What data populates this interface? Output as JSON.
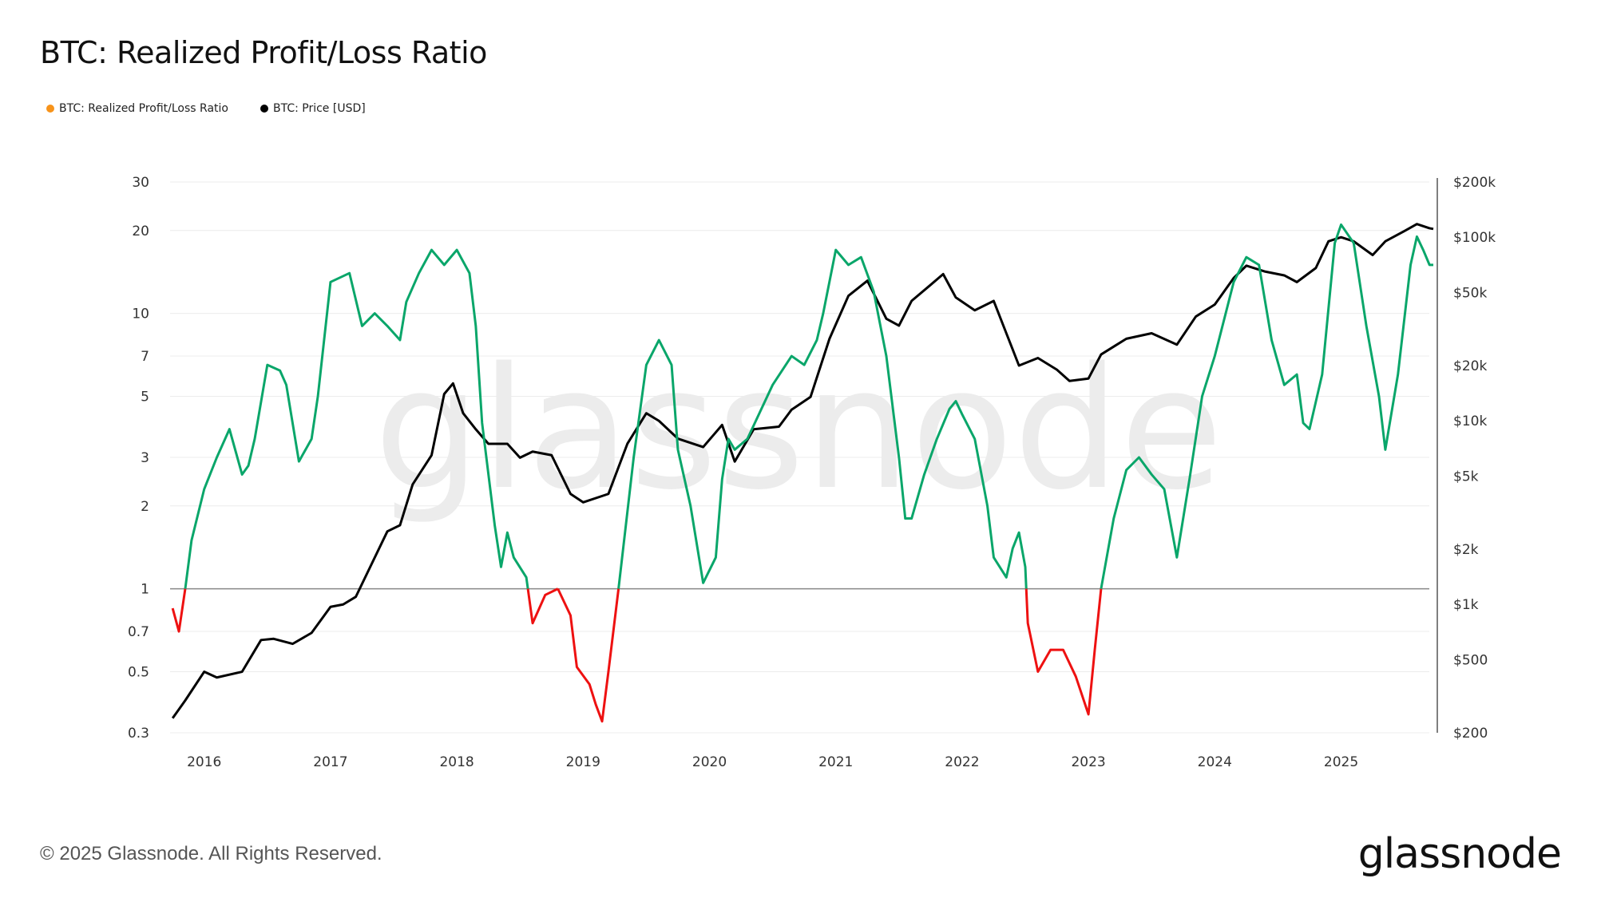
{
  "title": "BTC: Realized Profit/Loss Ratio",
  "legend": [
    {
      "label": "BTC: Realized Profit/Loss Ratio",
      "color": "#f7931a"
    },
    {
      "label": "BTC: Price [USD]",
      "color": "#000000"
    }
  ],
  "footer": "© 2025 Glassnode. All Rights Reserved.",
  "logo": "glassnode",
  "watermark": "glassnode",
  "chart_data": {
    "type": "line",
    "title": "BTC: Realized Profit/Loss Ratio",
    "x_range": [
      2015.73,
      2025.73
    ],
    "x_ticks": [
      "2016",
      "2017",
      "2018",
      "2019",
      "2020",
      "2021",
      "2022",
      "2023",
      "2024",
      "2025"
    ],
    "y_left": {
      "scale": "log",
      "range": [
        0.3,
        30
      ],
      "ticks": [
        {
          "v": 30,
          "label": "30"
        },
        {
          "v": 20,
          "label": "20"
        },
        {
          "v": 10,
          "label": "10"
        },
        {
          "v": 7,
          "label": "7"
        },
        {
          "v": 5,
          "label": "5"
        },
        {
          "v": 3,
          "label": "3"
        },
        {
          "v": 2,
          "label": "2"
        },
        {
          "v": 1,
          "label": "1"
        },
        {
          "v": 0.7,
          "label": "0.7"
        },
        {
          "v": 0.5,
          "label": "0.5"
        },
        {
          "v": 0.3,
          "label": "0.3"
        }
      ]
    },
    "y_right": {
      "scale": "log",
      "range": [
        200,
        200000
      ],
      "ticks": [
        {
          "v": 200000,
          "label": "$200k"
        },
        {
          "v": 100000,
          "label": "$100k"
        },
        {
          "v": 50000,
          "label": "$50k"
        },
        {
          "v": 20000,
          "label": "$20k"
        },
        {
          "v": 10000,
          "label": "$10k"
        },
        {
          "v": 5000,
          "label": "$5k"
        },
        {
          "v": 2000,
          "label": "$2k"
        },
        {
          "v": 1000,
          "label": "$1k"
        },
        {
          "v": 500,
          "label": "$500"
        },
        {
          "v": 200,
          "label": "$200"
        }
      ]
    },
    "threshold": 1,
    "colors": {
      "above": "#0aa66a",
      "below": "#ee1111",
      "price": "#000000"
    },
    "series": [
      {
        "name": "BTC: Realized Profit/Loss Ratio",
        "axis": "left",
        "x": [
          2015.75,
          2015.8,
          2015.85,
          2015.9,
          2016.0,
          2016.1,
          2016.2,
          2016.3,
          2016.35,
          2016.4,
          2016.5,
          2016.6,
          2016.65,
          2016.75,
          2016.85,
          2016.9,
          2017.0,
          2017.15,
          2017.25,
          2017.35,
          2017.45,
          2017.55,
          2017.6,
          2017.7,
          2017.8,
          2017.9,
          2018.0,
          2018.1,
          2018.15,
          2018.2,
          2018.3,
          2018.35,
          2018.4,
          2018.45,
          2018.55,
          2018.6,
          2018.7,
          2018.8,
          2018.9,
          2018.95,
          2019.05,
          2019.1,
          2019.15,
          2019.2,
          2019.28,
          2019.4,
          2019.5,
          2019.6,
          2019.7,
          2019.75,
          2019.85,
          2019.95,
          2020.05,
          2020.1,
          2020.15,
          2020.2,
          2020.3,
          2020.5,
          2020.65,
          2020.75,
          2020.85,
          2020.9,
          2021.0,
          2021.1,
          2021.2,
          2021.3,
          2021.4,
          2021.5,
          2021.55,
          2021.6,
          2021.7,
          2021.8,
          2021.9,
          2021.95,
          2022.0,
          2022.1,
          2022.2,
          2022.25,
          2022.35,
          2022.4,
          2022.45,
          2022.5,
          2022.52,
          2022.6,
          2022.7,
          2022.8,
          2022.9,
          2023.0,
          2023.05,
          2023.1,
          2023.2,
          2023.3,
          2023.4,
          2023.5,
          2023.6,
          2023.7,
          2023.8,
          2023.9,
          2024.0,
          2024.15,
          2024.25,
          2024.35,
          2024.45,
          2024.55,
          2024.65,
          2024.7,
          2024.75,
          2024.85,
          2024.95,
          2025.0,
          2025.1,
          2025.2,
          2025.3,
          2025.35,
          2025.45,
          2025.55,
          2025.6,
          2025.65,
          2025.7,
          2025.73
        ],
        "values": [
          0.85,
          0.7,
          1.0,
          1.5,
          2.3,
          3.0,
          3.8,
          2.6,
          2.8,
          3.5,
          6.5,
          6.2,
          5.5,
          2.9,
          3.5,
          5,
          13,
          14,
          9,
          10,
          9,
          8,
          11,
          14,
          17,
          15,
          17,
          14,
          9,
          4,
          1.7,
          1.2,
          1.6,
          1.3,
          1.1,
          0.75,
          0.95,
          1.0,
          0.8,
          0.52,
          0.45,
          0.38,
          0.33,
          0.5,
          1.0,
          3,
          6.5,
          8,
          6.5,
          3.2,
          2,
          1.05,
          1.3,
          2.5,
          3.5,
          3.2,
          3.5,
          5.5,
          7,
          6.5,
          8,
          10,
          17,
          15,
          16,
          12,
          7,
          3,
          1.8,
          1.8,
          2.6,
          3.5,
          4.5,
          4.8,
          4.3,
          3.5,
          2,
          1.3,
          1.1,
          1.4,
          1.6,
          1.2,
          0.75,
          0.5,
          0.6,
          0.6,
          0.48,
          0.35,
          0.6,
          1.0,
          1.8,
          2.7,
          3.0,
          2.6,
          2.3,
          1.3,
          2.5,
          5,
          7,
          13,
          16,
          15,
          8,
          5.5,
          6,
          4,
          3.8,
          6,
          18,
          21,
          18,
          9,
          5,
          3.2,
          6,
          15,
          19,
          17,
          15,
          15
        ]
      },
      {
        "name": "BTC: Price [USD]",
        "axis": "right",
        "x": [
          2015.75,
          2015.85,
          2016.0,
          2016.1,
          2016.3,
          2016.45,
          2016.55,
          2016.7,
          2016.85,
          2017.0,
          2017.1,
          2017.2,
          2017.35,
          2017.45,
          2017.55,
          2017.65,
          2017.8,
          2017.9,
          2017.97,
          2018.05,
          2018.15,
          2018.25,
          2018.4,
          2018.5,
          2018.6,
          2018.75,
          2018.9,
          2019.0,
          2019.2,
          2019.35,
          2019.5,
          2019.6,
          2019.75,
          2019.95,
          2020.1,
          2020.2,
          2020.35,
          2020.55,
          2020.65,
          2020.8,
          2020.95,
          2021.1,
          2021.25,
          2021.4,
          2021.5,
          2021.6,
          2021.75,
          2021.85,
          2021.95,
          2022.1,
          2022.25,
          2022.35,
          2022.45,
          2022.6,
          2022.75,
          2022.85,
          2023.0,
          2023.1,
          2023.3,
          2023.5,
          2023.7,
          2023.85,
          2024.0,
          2024.15,
          2024.25,
          2024.4,
          2024.55,
          2024.65,
          2024.8,
          2024.9,
          2025.0,
          2025.1,
          2025.25,
          2025.35,
          2025.5,
          2025.6,
          2025.7,
          2025.73
        ],
        "values": [
          240,
          300,
          430,
          400,
          430,
          640,
          650,
          610,
          700,
          970,
          1000,
          1100,
          1800,
          2500,
          2700,
          4500,
          6500,
          14000,
          16000,
          11000,
          9000,
          7500,
          7500,
          6300,
          6800,
          6500,
          4000,
          3600,
          4000,
          7500,
          11000,
          10000,
          8000,
          7200,
          9500,
          6000,
          9000,
          9300,
          11500,
          13500,
          28000,
          48000,
          58000,
          36000,
          33000,
          45000,
          55000,
          63000,
          47000,
          40000,
          45000,
          30000,
          20000,
          22000,
          19000,
          16500,
          17000,
          23000,
          28000,
          30000,
          26000,
          37000,
          43000,
          60000,
          70000,
          65000,
          62000,
          57000,
          68000,
          95000,
          100000,
          95000,
          80000,
          95000,
          108000,
          118000,
          112000,
          111000
        ]
      }
    ]
  }
}
